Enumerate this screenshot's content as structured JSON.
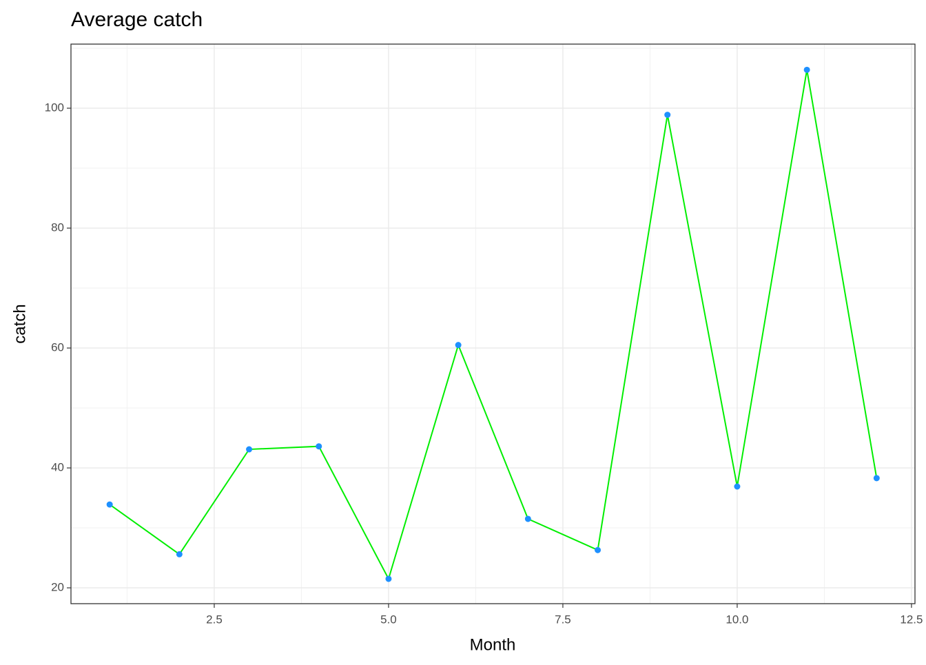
{
  "chart_data": {
    "type": "line",
    "title": "Average catch",
    "x_label": "Month",
    "y_label": "catch",
    "x": [
      1,
      2,
      3,
      4,
      5,
      6,
      7,
      8,
      9,
      10,
      11,
      12
    ],
    "values": [
      33.9,
      25.6,
      43.1,
      43.6,
      21.5,
      60.5,
      31.5,
      26.3,
      98.9,
      36.9,
      106.4,
      38.3
    ],
    "line_color": "#00ee00",
    "point_color": "#1e90ff",
    "xlim": [
      0.445,
      12.55
    ],
    "ylim": [
      17.36,
      110.69
    ],
    "xticks": [
      2.5,
      {
        "value": 5,
        "label": "5.0"
      },
      7.5,
      {
        "value": 10,
        "label": "10.0"
      },
      12.5
    ],
    "yticks": [
      20,
      40,
      60,
      80,
      100
    ],
    "grid": true
  }
}
